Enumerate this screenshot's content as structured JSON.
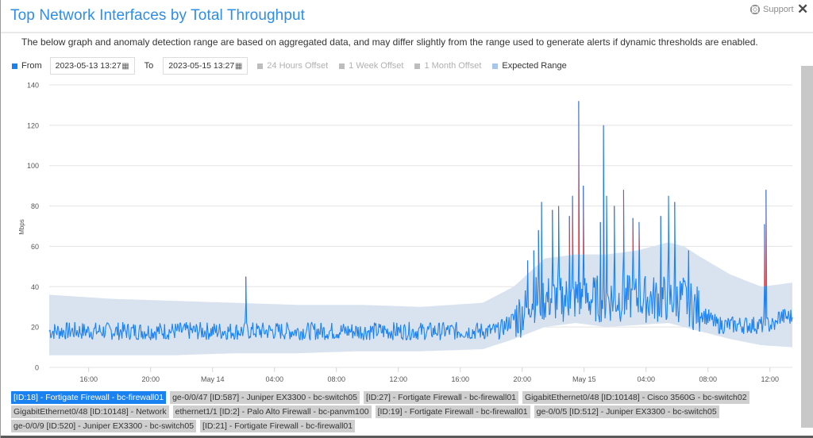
{
  "header": {
    "title": "Top Network Interfaces by Total Throughput",
    "support_label": "Support",
    "close_icon": "close-icon"
  },
  "notice": "The below graph and anomaly detection range are based on aggregated data, and may differ slightly from the range used to generate alerts if dynamic thresholds are enabled.",
  "controls": {
    "from_label": "From",
    "from_value": "2023-05-13 13:27",
    "to_label": "To",
    "to_value": "2023-05-15 13:27",
    "offset_24h": "24 Hours Offset",
    "offset_1w": "1 Week Offset",
    "offset_1m": "1 Month Offset",
    "expected_range": "Expected Range"
  },
  "colors": {
    "title": "#2e8ee6",
    "series": "#1a82f0",
    "anomaly": "#f0282d",
    "expected_range": "#d9e3f0",
    "legend_active": "#1a82f0",
    "legend_inactive": "#cfcfcf"
  },
  "legend": [
    {
      "label": "[ID:18] - Fortigate Firewall - bc-firewall01",
      "active": true
    },
    {
      "label": "ge-0/0/47 [ID:587] - Juniper EX3300 - bc-switch05",
      "active": false
    },
    {
      "label": "[ID:27] - Fortigate Firewall - bc-firewall01",
      "active": false
    },
    {
      "label": "GigabitEthernet0/48 [ID:10148] - Cisco 3560G - bc-switch02",
      "active": false
    },
    {
      "label": "GigabitEthernet0/48 [ID:10148] - Network",
      "active": false
    },
    {
      "label": "ethernet1/1 [ID:2] - Palo Alto Firewall - bc-panvm100",
      "active": false
    },
    {
      "label": "[ID:19] - Fortigate Firewall - bc-firewall01",
      "active": false
    },
    {
      "label": "ge-0/0/5 [ID:512] - Juniper EX3300 - bc-switch05",
      "active": false
    },
    {
      "label": "ge-0/0/9 [ID:520] - Juniper EX3300 - bc-switch05",
      "active": false
    },
    {
      "label": "[ID:21] - Fortigate Firewall - bc-firewall01",
      "active": false
    }
  ],
  "chart_data": {
    "type": "line",
    "title": "Top Network Interfaces by Total Throughput",
    "xlabel": "",
    "ylabel": "Mbps",
    "ylim": [
      0,
      140
    ],
    "yticks": [
      0,
      20,
      40,
      60,
      80,
      100,
      120,
      140
    ],
    "xticks": [
      "16:00",
      "20:00",
      "May 14",
      "04:00",
      "08:00",
      "12:00",
      "16:00",
      "20:00",
      "May 15",
      "04:00",
      "08:00",
      "12:00"
    ],
    "x_range": [
      "2023-05-13 13:27",
      "2023-05-15 13:27"
    ],
    "grid": true,
    "legend_position": "top",
    "series": [
      {
        "name": "[ID:18] - Fortigate Firewall - bc-firewall01",
        "hours": [
          0,
          2,
          4,
          6,
          8,
          10,
          12,
          14,
          16,
          18,
          20,
          22,
          24,
          26,
          28,
          30,
          30.5,
          31,
          31.5,
          32,
          32.5,
          33,
          33.5,
          34,
          34.5,
          35,
          35.5,
          36,
          37,
          38,
          39,
          40,
          41,
          42,
          43,
          44,
          45,
          46,
          46.3,
          46.5,
          47,
          48
        ],
        "values": [
          18,
          17,
          19,
          18,
          20,
          17,
          18,
          17,
          19,
          18,
          19,
          18,
          19,
          20,
          18,
          24,
          45,
          35,
          85,
          25,
          132,
          30,
          120,
          22,
          50,
          28,
          78,
          30,
          60,
          40,
          65,
          50,
          48,
          26,
          20,
          19,
          18,
          22,
          88,
          20,
          18,
          32
        ]
      },
      {
        "name": "Expected Range (upper)",
        "hours": [
          0,
          4,
          8,
          12,
          16,
          20,
          24,
          28,
          30,
          32,
          34,
          36,
          38,
          40,
          41,
          42,
          44,
          46,
          48
        ],
        "values": [
          36,
          34,
          33,
          32,
          31,
          31,
          30,
          32,
          40,
          54,
          56,
          56,
          58,
          62,
          60,
          55,
          46,
          40,
          42
        ]
      },
      {
        "name": "Expected Range (lower)",
        "hours": [
          0,
          4,
          8,
          12,
          16,
          20,
          24,
          28,
          30,
          32,
          34,
          36,
          38,
          40,
          42,
          44,
          46,
          48
        ],
        "values": [
          6,
          6,
          6,
          7,
          7,
          8,
          8,
          9,
          14,
          20,
          22,
          20,
          21,
          22,
          18,
          14,
          11,
          10
        ]
      }
    ],
    "anomalies_above_range_hours": [
      31.8,
      33.6,
      33.9,
      34.2,
      35.4,
      35.6,
      36.2,
      36.5,
      37.1,
      37.6,
      38.3,
      39.5,
      40.4,
      40.5,
      41.6,
      46.3
    ],
    "peak_value": 132,
    "peak_time": "2023-05-15 ~00:10"
  }
}
